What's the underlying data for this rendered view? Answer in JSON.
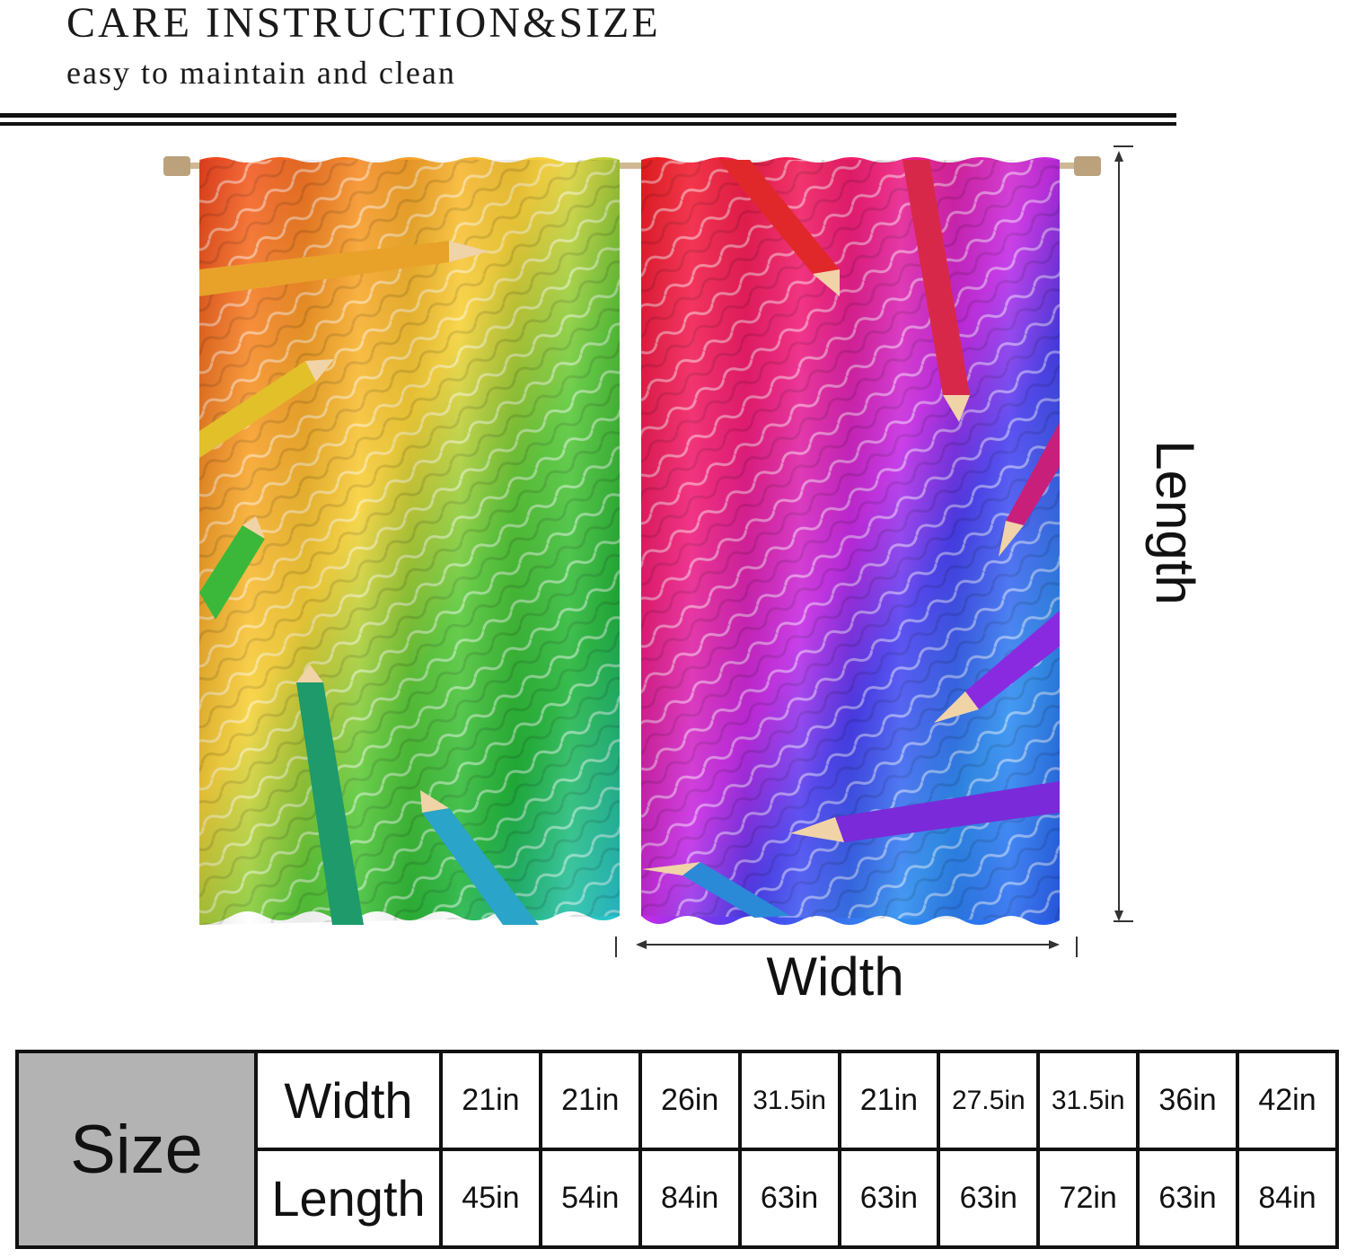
{
  "header": {
    "title": "CARE INSTRUCTION&SIZE",
    "subtitle": "easy to maintain and clean"
  },
  "diagram": {
    "length_label": "Length",
    "width_label": "Width",
    "colors": {
      "red": "#f21f2a",
      "orange": "#f47a1f",
      "yellow": "#f7d23a",
      "green": "#33b832",
      "cyan": "#26c4e6",
      "blue": "#2f3ef0",
      "purple": "#8e2de2",
      "magenta": "#f01ec6"
    }
  },
  "size_table": {
    "header": "Size",
    "rows": [
      {
        "label": "Width",
        "values": [
          "21in",
          "21in",
          "26in",
          "31.5in",
          "21in",
          "27.5in",
          "31.5in",
          "36in",
          "42in"
        ]
      },
      {
        "label": "Length",
        "values": [
          "45in",
          "54in",
          "84in",
          "63in",
          "63in",
          "63in",
          "72in",
          "63in",
          "84in"
        ]
      }
    ]
  }
}
